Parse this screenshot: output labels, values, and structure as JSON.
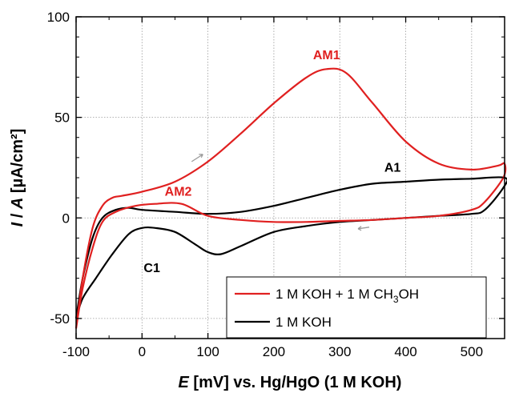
{
  "chart_data": {
    "type": "line",
    "xlabel_symbol": "E",
    "xlabel_rest": " [mV] vs. Hg/HgO (1 M KOH)",
    "ylabel_symbol_1": "I",
    "ylabel_sep": " / ",
    "ylabel_symbol_2": "A",
    "ylabel_rest": " [µA/cm²]",
    "xlim": [
      -100,
      550
    ],
    "ylim": [
      -60,
      100
    ],
    "x_ticks": [
      -100,
      0,
      100,
      200,
      300,
      400,
      500
    ],
    "y_ticks": [
      -50,
      0,
      50,
      100
    ],
    "grid": true,
    "legend_position": "bottom-right",
    "colors": {
      "methanol": "#e02020",
      "koh": "#000000",
      "arrow": "#9a9a9a"
    },
    "series": [
      {
        "name": "1 M KOH + 1 M CH3OH",
        "legend_main": "1 M KOH + 1 M CH",
        "legend_sub": "3",
        "legend_tail": "OH",
        "color": "#e02020",
        "x": [
          -100,
          -90,
          -75,
          -60,
          -45,
          -30,
          0,
          50,
          100,
          150,
          200,
          250,
          280,
          310,
          350,
          400,
          450,
          500,
          540,
          550,
          548,
          520,
          500,
          450,
          400,
          350,
          300,
          250,
          200,
          150,
          100,
          60,
          20,
          -10,
          -40,
          -60,
          -75,
          -90,
          -100
        ],
        "y": [
          -55,
          -30,
          -5,
          6,
          10,
          11,
          13,
          18,
          28,
          42,
          57,
          70,
          74,
          72,
          57,
          38,
          27,
          24,
          26,
          27,
          20,
          8,
          4,
          1,
          0,
          -1,
          -1.5,
          -2,
          -2,
          -1,
          1,
          7,
          7,
          6,
          3,
          -2,
          -15,
          -35,
          -55
        ]
      },
      {
        "name": "1 M KOH",
        "legend_main": "1 M KOH",
        "legend_sub": "",
        "legend_tail": "",
        "color": "#000000",
        "x": [
          -100,
          -90,
          -75,
          -60,
          -40,
          -20,
          0,
          50,
          100,
          150,
          200,
          250,
          300,
          350,
          400,
          450,
          500,
          550,
          548,
          520,
          500,
          450,
          400,
          350,
          300,
          250,
          200,
          150,
          120,
          100,
          80,
          50,
          20,
          0,
          -20,
          -45,
          -70,
          -90,
          -100
        ],
        "y": [
          -50,
          -30,
          -10,
          0,
          4,
          5,
          4,
          3,
          2,
          3,
          6,
          10,
          14,
          17,
          18,
          19,
          19.5,
          20,
          15,
          4,
          2,
          1,
          0,
          -1,
          -2,
          -4,
          -7,
          -14,
          -18,
          -17,
          -13,
          -7,
          -5,
          -5,
          -8,
          -18,
          -30,
          -40,
          -50
        ]
      }
    ],
    "annotations": [
      {
        "text": "AM1",
        "x": 280,
        "y": 79,
        "color": "#e02020"
      },
      {
        "text": "AM2",
        "x": 55,
        "y": 11,
        "color": "#e02020"
      },
      {
        "text": "A1",
        "x": 380,
        "y": 23,
        "color": "#000000"
      },
      {
        "text": "C1",
        "x": 15,
        "y": -27,
        "color": "#000000"
      }
    ]
  }
}
